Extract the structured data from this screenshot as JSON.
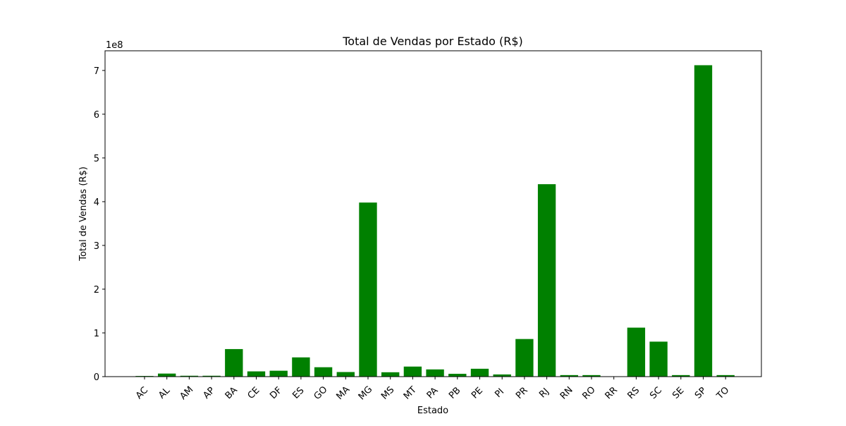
{
  "chart_data": {
    "type": "bar",
    "title": "Total de Vendas por Estado (R$)",
    "xlabel": "Estado",
    "ylabel": "Total de Vendas (R$)",
    "offset_label": "1e8",
    "categories": [
      "AC",
      "AL",
      "AM",
      "AP",
      "BA",
      "CE",
      "DF",
      "ES",
      "GO",
      "MA",
      "MG",
      "MS",
      "MT",
      "PA",
      "PB",
      "PE",
      "PI",
      "PR",
      "RJ",
      "RN",
      "RO",
      "RR",
      "RS",
      "SC",
      "SE",
      "SP",
      "TO"
    ],
    "values": [
      1.5,
      7.0,
      2.0,
      2.0,
      63.0,
      12.0,
      13.5,
      44.0,
      21.5,
      10.5,
      398.0,
      10.0,
      23.0,
      16.5,
      6.5,
      18.0,
      5.0,
      86.0,
      440.0,
      3.5,
      3.5,
      0.5,
      112.0,
      80.0,
      3.5,
      712.0,
      3.5
    ],
    "value_unit_note": "values in millions of R$ (axis shows units of 1e8)",
    "ylim": [
      0,
      745
    ],
    "yticks": [
      0,
      100,
      200,
      300,
      400,
      500,
      600,
      700
    ],
    "ytick_labels": [
      "0",
      "1",
      "2",
      "3",
      "4",
      "5",
      "6",
      "7"
    ],
    "bar_color": "#008000",
    "grid": false,
    "legend": "none"
  }
}
